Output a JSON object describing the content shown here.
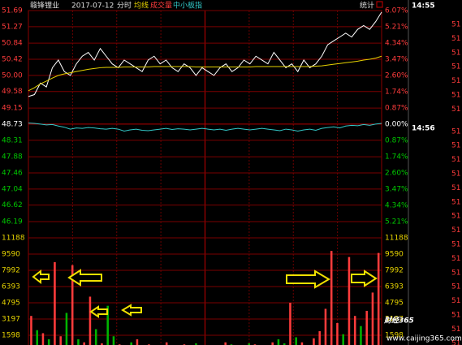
{
  "header": {
    "stock": "赣锋锂业",
    "date": "2017-07-12",
    "mode": "分时",
    "avg_label": "均线",
    "volume_label": "成交量",
    "index_label": "中小板指",
    "stats": "统计"
  },
  "chart_data": [
    {
      "type": "line",
      "ylim": [
        46.19,
        51.69
      ],
      "yticks": [
        51.69,
        51.27,
        50.84,
        50.42,
        {
          "value": 50.0,
          "label": "50.00"
        },
        49.58,
        49.15,
        48.73,
        48.31,
        47.88,
        47.46,
        47.04,
        46.62,
        46.19
      ],
      "y2lim": [
        -5.21,
        6.07
      ],
      "y2ticks": [
        {
          "value": 6.07,
          "label": "6.07%"
        },
        {
          "value": 5.21,
          "label": "5.21%"
        },
        {
          "value": 4.34,
          "label": "4.34%"
        },
        {
          "value": 3.47,
          "label": "3.47%"
        },
        {
          "value": 2.6,
          "label": "2.60%"
        },
        {
          "value": 1.74,
          "label": "1.74%"
        },
        {
          "value": 0.87,
          "label": "0.87%"
        },
        {
          "value": 0,
          "label": "0.00%"
        },
        {
          "value": -0.87,
          "label": "0.87%"
        },
        {
          "value": -1.74,
          "label": "1.74%"
        },
        {
          "value": -2.6,
          "label": "2.60%"
        },
        {
          "value": -3.47,
          "label": "3.47%"
        },
        {
          "value": -4.34,
          "label": "4.34%"
        },
        {
          "value": -5.21,
          "label": "5.21%"
        }
      ],
      "series": [
        {
          "color": "#ffffff",
          "values": [
            49.45,
            49.5,
            49.8,
            49.7,
            50.2,
            50.4,
            50.1,
            50.0,
            50.3,
            50.5,
            50.6,
            50.4,
            50.7,
            50.5,
            50.3,
            50.2,
            50.4,
            50.3,
            50.2,
            50.1,
            50.4,
            50.5,
            50.3,
            50.4,
            50.2,
            50.1,
            50.3,
            50.2,
            50.0,
            50.2,
            50.1,
            50.0,
            50.2,
            50.3,
            50.1,
            50.2,
            50.4,
            50.3,
            50.5,
            50.4,
            50.3,
            50.6,
            50.4,
            50.2,
            50.3,
            50.1,
            50.4,
            50.2,
            50.3,
            50.5,
            50.8,
            50.9,
            51.0,
            51.1,
            51.0,
            51.2,
            51.3,
            51.2,
            51.4,
            51.65
          ]
        },
        {
          "color": "#e6d200",
          "values": [
            49.6,
            49.68,
            49.78,
            49.85,
            49.93,
            50.0,
            50.04,
            50.07,
            50.1,
            50.13,
            50.16,
            50.18,
            50.2,
            50.21,
            50.21,
            50.21,
            50.22,
            50.22,
            50.22,
            50.22,
            50.22,
            50.23,
            50.23,
            50.23,
            50.23,
            50.23,
            50.23,
            50.23,
            50.22,
            50.22,
            50.22,
            50.22,
            50.22,
            50.22,
            50.22,
            50.22,
            50.22,
            50.22,
            50.23,
            50.23,
            50.23,
            50.23,
            50.23,
            50.23,
            50.23,
            50.23,
            50.23,
            50.23,
            50.24,
            50.25,
            50.27,
            50.29,
            50.31,
            50.33,
            50.35,
            50.37,
            50.4,
            50.42,
            50.45,
            50.5
          ]
        },
        {
          "color": "#32c8c8",
          "values": [
            48.76,
            48.75,
            48.73,
            48.71,
            48.72,
            48.68,
            48.65,
            48.6,
            48.63,
            48.62,
            48.64,
            48.63,
            48.61,
            48.6,
            48.62,
            48.6,
            48.55,
            48.58,
            48.6,
            48.57,
            48.56,
            48.58,
            48.6,
            48.62,
            48.59,
            48.61,
            48.6,
            48.58,
            48.6,
            48.62,
            48.6,
            48.58,
            48.6,
            48.57,
            48.6,
            48.62,
            48.6,
            48.58,
            48.6,
            48.62,
            48.6,
            48.58,
            48.56,
            48.6,
            48.58,
            48.55,
            48.58,
            48.6,
            48.57,
            48.62,
            48.64,
            48.66,
            48.63,
            48.68,
            48.7,
            48.69,
            48.72,
            48.7,
            48.73,
            48.75
          ]
        }
      ]
    },
    {
      "type": "bar",
      "ylim": [
        0,
        11188
      ],
      "yticks": [
        11188,
        9590,
        7992,
        6393,
        4795,
        3197,
        1598
      ],
      "values": [
        3500,
        2100,
        1800,
        1200,
        8800,
        1500,
        3800,
        8500,
        1200,
        900,
        5400,
        2200,
        800,
        4500,
        1500,
        700,
        600,
        900,
        1200,
        500,
        700,
        400,
        600,
        900,
        500,
        400,
        700,
        600,
        800,
        500,
        400,
        600,
        500,
        900,
        700,
        500,
        600,
        800,
        700,
        600,
        500,
        900,
        1200,
        800,
        4800,
        1400,
        900,
        600,
        1300,
        2000,
        4200,
        9900,
        2800,
        1700,
        9300,
        3500,
        2500,
        4000,
        5800,
        9700
      ],
      "colors": [
        "#ff3c3c",
        "#00b400",
        "#ff3c3c",
        "#00b400",
        "#ff3c3c",
        "#ff3c3c",
        "#00b400",
        "#ff3c3c",
        "#00b400",
        "#ff3c3c",
        "#ff3c3c",
        "#00b400",
        "#ff3c3c",
        "#00b400",
        "#00b400",
        "#ff3c3c",
        "#00b400",
        "#00b400",
        "#ff3c3c",
        "#00b400",
        "#ff3c3c",
        "#ff3c3c",
        "#00b400",
        "#ff3c3c",
        "#00b400",
        "#00b400",
        "#ff3c3c",
        "#00b400",
        "#00b400",
        "#ff3c3c",
        "#00b400",
        "#00b400",
        "#ff3c3c",
        "#ff3c3c",
        "#00b400",
        "#ff3c3c",
        "#ff3c3c",
        "#00b400",
        "#ff3c3c",
        "#00b400",
        "#00b400",
        "#ff3c3c",
        "#00b400",
        "#00b400",
        "#ff3c3c",
        "#00b400",
        "#ff3c3c",
        "#00b400",
        "#ff3c3c",
        "#ff3c3c",
        "#ff3c3c",
        "#ff3c3c",
        "#ff3c3c",
        "#00b400",
        "#ff3c3c",
        "#ff3c3c",
        "#00b400",
        "#ff3c3c",
        "#ff3c3c",
        "#ff3c3c"
      ]
    }
  ],
  "side_panel": {
    "times": [
      "14:55",
      "14:56"
    ],
    "prices": [
      "51",
      "51",
      "51",
      "51",
      "51",
      "51",
      "51",
      "51",
      "51",
      "51",
      "51",
      "51",
      "51",
      "51",
      "51",
      "51",
      "51",
      "51",
      "51",
      "51",
      "51",
      "51",
      "51"
    ]
  },
  "watermark": {
    "brand": "财经365",
    "url": "www.caijing365.com"
  }
}
